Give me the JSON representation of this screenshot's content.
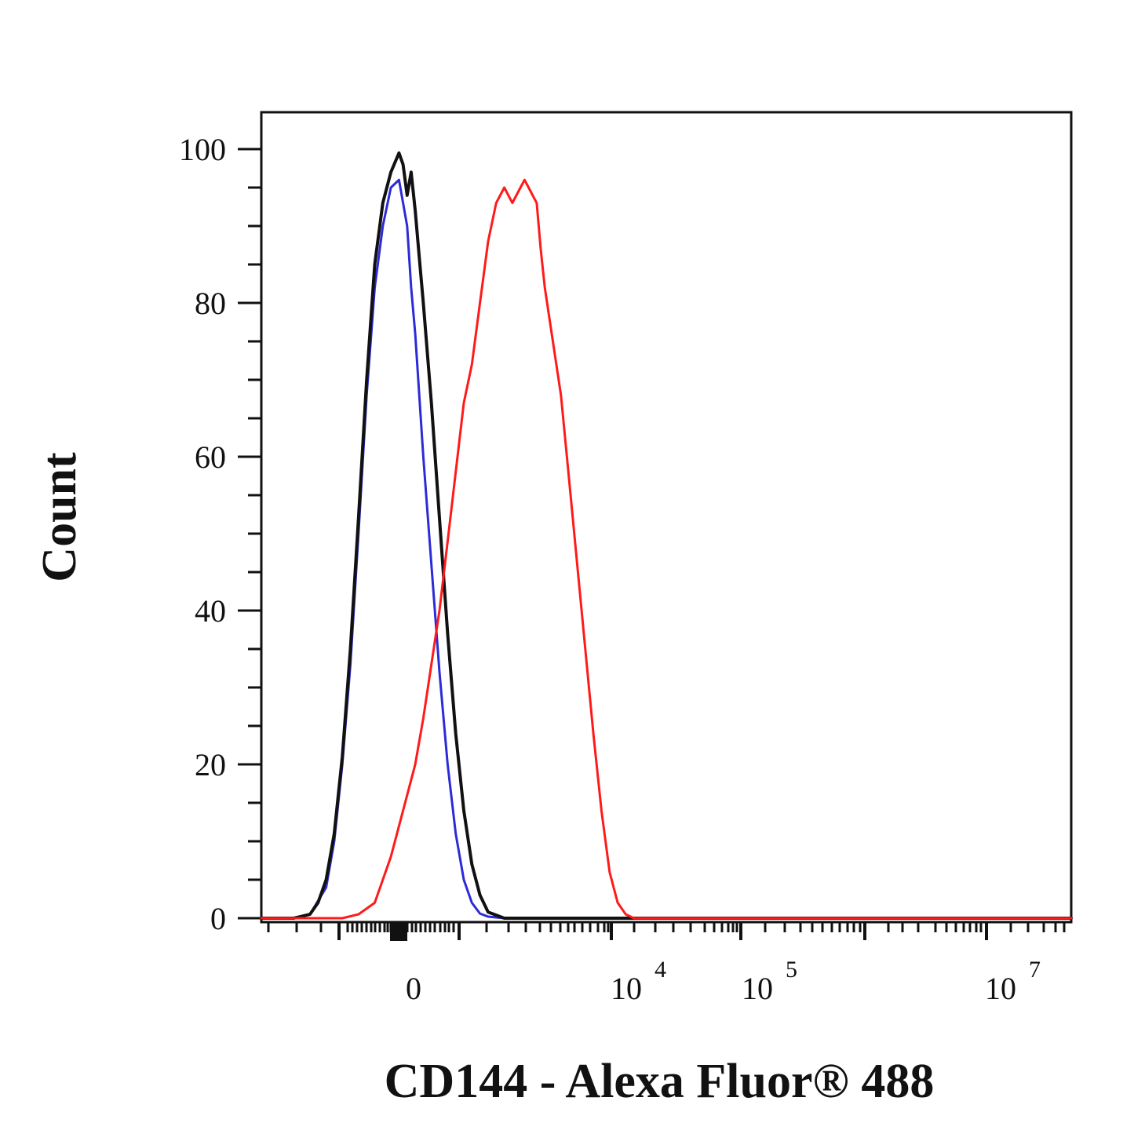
{
  "chart_data": {
    "type": "line",
    "title": "",
    "xlabel": "CD144 - Alexa Fluor® 488",
    "ylabel": "Count",
    "x_scale": "biexponential",
    "y_range": [
      0,
      100
    ],
    "y_ticks": [
      0,
      20,
      40,
      60,
      80,
      100
    ],
    "y_tick_labels": [
      "0",
      "20",
      "40",
      "60",
      "80",
      "100"
    ],
    "x_tick_labels": [
      {
        "base": "0",
        "exp": ""
      },
      {
        "base": "10",
        "exp": "4"
      },
      {
        "base": "10",
        "exp": "5"
      },
      {
        "base": "10",
        "exp": "7"
      }
    ],
    "grid": false,
    "legend": "none",
    "series": [
      {
        "color": "#2b2bd8",
        "stroke_width": 3,
        "x": [
          0.0,
          0.04,
          0.06,
          0.08,
          0.09,
          0.1,
          0.11,
          0.12,
          0.13,
          0.14,
          0.15,
          0.16,
          0.17,
          0.18,
          0.185,
          0.19,
          0.2,
          0.21,
          0.22,
          0.23,
          0.24,
          0.25,
          0.26,
          0.27,
          0.28,
          0.3,
          0.32,
          0.35,
          0.4,
          0.5,
          0.7,
          1.0
        ],
        "y": [
          0,
          0,
          0.5,
          4,
          10,
          20,
          33,
          50,
          68,
          82,
          90,
          95,
          96,
          90,
          82,
          76,
          60,
          46,
          32,
          20,
          11,
          5,
          2,
          0.6,
          0.2,
          0,
          0,
          0,
          0,
          0,
          0,
          0
        ]
      },
      {
        "color": "#111111",
        "stroke_width": 4,
        "x": [
          0.0,
          0.04,
          0.06,
          0.07,
          0.08,
          0.09,
          0.1,
          0.11,
          0.12,
          0.13,
          0.14,
          0.15,
          0.16,
          0.17,
          0.175,
          0.18,
          0.185,
          0.19,
          0.195,
          0.2,
          0.21,
          0.22,
          0.23,
          0.24,
          0.25,
          0.26,
          0.27,
          0.28,
          0.3,
          0.35,
          0.4,
          0.5,
          0.7,
          1.0
        ],
        "y": [
          0,
          0,
          0.5,
          2,
          5,
          11,
          21,
          35,
          52,
          70,
          85,
          93,
          97,
          99.5,
          98,
          94,
          97,
          92,
          86,
          80,
          67,
          52,
          37,
          24,
          14,
          7,
          3,
          0.8,
          0,
          0,
          0,
          0,
          0,
          0
        ]
      },
      {
        "color": "#ff1a1a",
        "stroke_width": 3,
        "x": [
          0.0,
          0.1,
          0.12,
          0.14,
          0.16,
          0.18,
          0.19,
          0.2,
          0.21,
          0.22,
          0.23,
          0.24,
          0.25,
          0.26,
          0.27,
          0.28,
          0.29,
          0.3,
          0.31,
          0.32,
          0.325,
          0.33,
          0.335,
          0.34,
          0.345,
          0.35,
          0.36,
          0.37,
          0.38,
          0.39,
          0.4,
          0.41,
          0.42,
          0.43,
          0.44,
          0.45,
          0.46,
          0.47,
          0.48,
          0.49,
          0.5,
          0.52,
          0.55,
          0.6,
          0.8,
          1.0
        ],
        "y": [
          0,
          0,
          0.5,
          2,
          8,
          16,
          20,
          26,
          33,
          40,
          49,
          58,
          67,
          72,
          80,
          88,
          93,
          95,
          93,
          95,
          96,
          95,
          94,
          93,
          87,
          82,
          75,
          68,
          57,
          46,
          35,
          24,
          14,
          6,
          2,
          0.5,
          0,
          0,
          0,
          0,
          0,
          0,
          0,
          0,
          0,
          0
        ]
      }
    ]
  }
}
